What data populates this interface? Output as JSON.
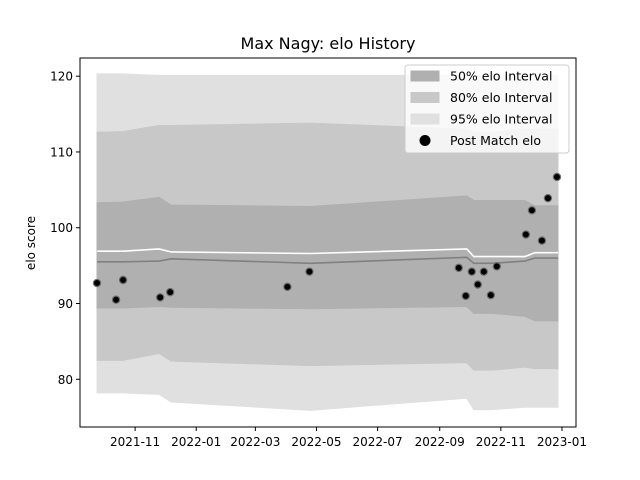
{
  "chart_data": {
    "type": "scatter",
    "title": "Max Nagy: elo History",
    "xlabel": "",
    "ylabel": "elo score",
    "xlim": [
      "2021-09-07",
      "2023-01-15"
    ],
    "ylim": [
      73.7,
      122.4
    ],
    "x_ticks": [
      "2021-11-01",
      "2022-01-01",
      "2022-03-01",
      "2022-05-01",
      "2022-07-01",
      "2022-09-01",
      "2022-11-01",
      "2023-01-01"
    ],
    "x_tick_labels": [
      "2021-11",
      "2022-01",
      "2022-03",
      "2022-05",
      "2022-07",
      "2022-09",
      "2022-11",
      "2023-01"
    ],
    "y_ticks": [
      80,
      90,
      100,
      110,
      120
    ],
    "y_tick_labels": [
      "80",
      "90",
      "100",
      "110",
      "120"
    ],
    "legend": {
      "position": "top-right",
      "items": [
        {
          "label": "50% elo Interval",
          "color": "#b0b0b0",
          "kind": "patch"
        },
        {
          "label": "80% elo Interval",
          "color": "#c8c8c8",
          "kind": "patch"
        },
        {
          "label": "95% elo Interval",
          "color": "#e0e0e0",
          "kind": "patch"
        },
        {
          "label": "Post Match elo",
          "color": "#000000",
          "kind": "marker"
        }
      ]
    },
    "interval_dates": [
      "2021-09-24",
      "2021-10-20",
      "2021-11-25",
      "2021-12-07",
      "2022-04-25",
      "2022-09-28",
      "2022-10-05",
      "2022-10-23",
      "2022-11-25",
      "2022-12-05",
      "2022-12-28"
    ],
    "bands": [
      {
        "name": "95% elo Interval",
        "color": "#e0e0e0",
        "upper": [
          120.3,
          120.3,
          120.1,
          120.1,
          120.1,
          120.1,
          120.1,
          120.1,
          120.1,
          120.1,
          120.1
        ],
        "lower": [
          78.2,
          78.2,
          78.0,
          77.0,
          75.9,
          77.5,
          76.0,
          76.0,
          76.3,
          76.3,
          76.3
        ]
      },
      {
        "name": "80% elo Interval",
        "color": "#c8c8c8",
        "upper": [
          112.6,
          112.7,
          113.5,
          113.5,
          113.8,
          113.0,
          112.6,
          112.6,
          113.0,
          113.0,
          113.0
        ],
        "lower": [
          82.5,
          82.5,
          83.4,
          82.4,
          81.8,
          82.2,
          81.2,
          81.2,
          81.6,
          81.4,
          81.4
        ]
      },
      {
        "name": "50% elo Interval",
        "color": "#b0b0b0",
        "upper": [
          103.3,
          103.4,
          104.0,
          103.0,
          102.8,
          104.2,
          103.6,
          103.6,
          103.6,
          102.9,
          102.9
        ],
        "lower": [
          89.4,
          89.4,
          89.6,
          89.5,
          89.3,
          89.6,
          88.7,
          88.7,
          88.3,
          87.7,
          87.7
        ]
      }
    ],
    "lines": [
      {
        "color": "#ffffff",
        "values": [
          96.9,
          96.9,
          97.2,
          96.8,
          96.6,
          97.2,
          96.2,
          96.2,
          96.2,
          96.7,
          96.7
        ]
      },
      {
        "color": "#808080",
        "values": [
          95.5,
          95.5,
          95.6,
          95.9,
          95.3,
          96.1,
          95.3,
          95.3,
          95.6,
          96.0,
          96.0
        ]
      }
    ],
    "points": [
      {
        "x": "2021-09-24",
        "y": 92.7
      },
      {
        "x": "2021-10-13",
        "y": 90.5
      },
      {
        "x": "2021-10-20",
        "y": 93.1
      },
      {
        "x": "2021-11-26",
        "y": 90.8
      },
      {
        "x": "2021-12-06",
        "y": 91.5
      },
      {
        "x": "2022-04-02",
        "y": 92.2
      },
      {
        "x": "2022-04-24",
        "y": 94.2
      },
      {
        "x": "2022-09-20",
        "y": 94.7
      },
      {
        "x": "2022-09-27",
        "y": 91.0
      },
      {
        "x": "2022-10-03",
        "y": 94.2
      },
      {
        "x": "2022-10-09",
        "y": 92.5
      },
      {
        "x": "2022-10-15",
        "y": 94.2
      },
      {
        "x": "2022-10-22",
        "y": 91.1
      },
      {
        "x": "2022-10-28",
        "y": 94.9
      },
      {
        "x": "2022-11-26",
        "y": 99.1
      },
      {
        "x": "2022-12-02",
        "y": 102.3
      },
      {
        "x": "2022-12-12",
        "y": 98.3
      },
      {
        "x": "2022-12-18",
        "y": 103.9
      },
      {
        "x": "2022-12-27",
        "y": 106.7
      }
    ]
  }
}
